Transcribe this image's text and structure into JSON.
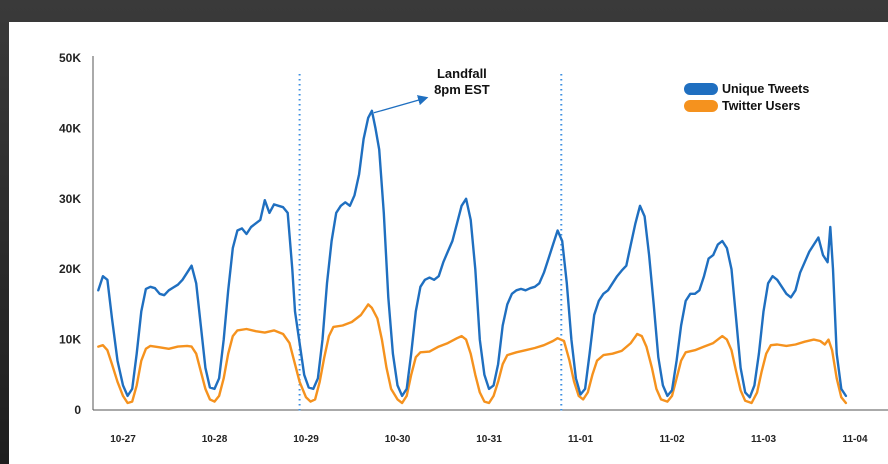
{
  "chart_data": {
    "type": "line",
    "title": "",
    "xlabel": "",
    "ylabel": "",
    "ylim": [
      0,
      50000
    ],
    "ytick_labels": [
      "0",
      "10K",
      "20K",
      "30K",
      "40K",
      "50K"
    ],
    "yticks": [
      0,
      10000,
      20000,
      30000,
      40000,
      50000
    ],
    "xlim": [
      0,
      8.33
    ],
    "xticks": [
      0,
      1,
      2,
      3,
      4,
      5,
      6,
      7,
      8
    ],
    "xtick_labels": [
      "10-27",
      "10-28",
      "10-29",
      "10-30",
      "10-31",
      "11-01",
      "11-02",
      "11-03",
      "11-04"
    ],
    "grid": false,
    "legend_position": "top-right",
    "annotation": {
      "text_line1": "Landfall",
      "text_line2": "8pm EST",
      "x": 2.72,
      "y": 42500
    },
    "vlines": [
      1.93,
      4.79
    ],
    "series": [
      {
        "name": "Unique Tweets",
        "color": "#1f6fc0",
        "points": [
          [
            -0.27,
            17000
          ],
          [
            -0.22,
            19000
          ],
          [
            -0.17,
            18500
          ],
          [
            -0.12,
            13000
          ],
          [
            -0.06,
            7000
          ],
          [
            0.0,
            3500
          ],
          [
            0.05,
            2000
          ],
          [
            0.1,
            3000
          ],
          [
            0.15,
            8000
          ],
          [
            0.2,
            14000
          ],
          [
            0.25,
            17200
          ],
          [
            0.3,
            17500
          ],
          [
            0.35,
            17300
          ],
          [
            0.4,
            16500
          ],
          [
            0.45,
            16300
          ],
          [
            0.5,
            17000
          ],
          [
            0.55,
            17400
          ],
          [
            0.6,
            17800
          ],
          [
            0.65,
            18500
          ],
          [
            0.7,
            19500
          ],
          [
            0.75,
            20500
          ],
          [
            0.8,
            18000
          ],
          [
            0.85,
            12000
          ],
          [
            0.9,
            6000
          ],
          [
            0.95,
            3200
          ],
          [
            1.0,
            3000
          ],
          [
            1.05,
            4500
          ],
          [
            1.1,
            10000
          ],
          [
            1.15,
            17000
          ],
          [
            1.2,
            23000
          ],
          [
            1.25,
            25500
          ],
          [
            1.3,
            25800
          ],
          [
            1.35,
            25000
          ],
          [
            1.4,
            26000
          ],
          [
            1.45,
            26500
          ],
          [
            1.5,
            27000
          ],
          [
            1.55,
            29800
          ],
          [
            1.6,
            28000
          ],
          [
            1.65,
            29200
          ],
          [
            1.7,
            29000
          ],
          [
            1.75,
            28800
          ],
          [
            1.8,
            28000
          ],
          [
            1.85,
            20000
          ],
          [
            1.88,
            14000
          ],
          [
            1.93,
            9500
          ],
          [
            1.98,
            5000
          ],
          [
            2.03,
            3200
          ],
          [
            2.08,
            3000
          ],
          [
            2.13,
            4500
          ],
          [
            2.18,
            10000
          ],
          [
            2.23,
            18000
          ],
          [
            2.28,
            24000
          ],
          [
            2.33,
            28000
          ],
          [
            2.38,
            29000
          ],
          [
            2.43,
            29500
          ],
          [
            2.48,
            29000
          ],
          [
            2.53,
            30500
          ],
          [
            2.58,
            33500
          ],
          [
            2.63,
            38500
          ],
          [
            2.68,
            41500
          ],
          [
            2.72,
            42500
          ],
          [
            2.76,
            40000
          ],
          [
            2.8,
            37000
          ],
          [
            2.85,
            28000
          ],
          [
            2.9,
            16000
          ],
          [
            2.95,
            8000
          ],
          [
            3.0,
            3500
          ],
          [
            3.05,
            2000
          ],
          [
            3.1,
            3000
          ],
          [
            3.15,
            8000
          ],
          [
            3.2,
            14000
          ],
          [
            3.25,
            17500
          ],
          [
            3.3,
            18500
          ],
          [
            3.35,
            18800
          ],
          [
            3.4,
            18500
          ],
          [
            3.45,
            19000
          ],
          [
            3.5,
            21000
          ],
          [
            3.55,
            22500
          ],
          [
            3.6,
            24000
          ],
          [
            3.65,
            26500
          ],
          [
            3.7,
            29000
          ],
          [
            3.75,
            30000
          ],
          [
            3.8,
            27000
          ],
          [
            3.85,
            20000
          ],
          [
            3.9,
            10000
          ],
          [
            3.95,
            5000
          ],
          [
            4.0,
            3000
          ],
          [
            4.05,
            3500
          ],
          [
            4.1,
            6500
          ],
          [
            4.15,
            12000
          ],
          [
            4.2,
            15000
          ],
          [
            4.25,
            16500
          ],
          [
            4.3,
            17000
          ],
          [
            4.35,
            17200
          ],
          [
            4.4,
            17000
          ],
          [
            4.45,
            17300
          ],
          [
            4.5,
            17500
          ],
          [
            4.55,
            18000
          ],
          [
            4.6,
            19500
          ],
          [
            4.65,
            21500
          ],
          [
            4.7,
            23500
          ],
          [
            4.75,
            25500
          ],
          [
            4.8,
            24000
          ],
          [
            4.85,
            18000
          ],
          [
            4.9,
            10000
          ],
          [
            4.95,
            4500
          ],
          [
            5.0,
            2200
          ],
          [
            5.05,
            3000
          ],
          [
            5.1,
            8000
          ],
          [
            5.15,
            13500
          ],
          [
            5.2,
            15500
          ],
          [
            5.25,
            16500
          ],
          [
            5.3,
            17000
          ],
          [
            5.35,
            18000
          ],
          [
            5.4,
            19000
          ],
          [
            5.45,
            19800
          ],
          [
            5.5,
            20500
          ],
          [
            5.55,
            23500
          ],
          [
            5.6,
            26500
          ],
          [
            5.65,
            29000
          ],
          [
            5.7,
            27500
          ],
          [
            5.75,
            22000
          ],
          [
            5.8,
            15000
          ],
          [
            5.85,
            7500
          ],
          [
            5.9,
            3500
          ],
          [
            5.95,
            2000
          ],
          [
            6.0,
            2800
          ],
          [
            6.05,
            7000
          ],
          [
            6.1,
            12000
          ],
          [
            6.15,
            15500
          ],
          [
            6.2,
            16500
          ],
          [
            6.25,
            16500
          ],
          [
            6.3,
            17000
          ],
          [
            6.35,
            19000
          ],
          [
            6.4,
            21500
          ],
          [
            6.45,
            22000
          ],
          [
            6.5,
            23500
          ],
          [
            6.55,
            24000
          ],
          [
            6.6,
            23000
          ],
          [
            6.65,
            20000
          ],
          [
            6.7,
            13000
          ],
          [
            6.75,
            6000
          ],
          [
            6.8,
            2500
          ],
          [
            6.85,
            1800
          ],
          [
            6.9,
            3500
          ],
          [
            6.95,
            8000
          ],
          [
            7.0,
            14000
          ],
          [
            7.05,
            18000
          ],
          [
            7.1,
            19000
          ],
          [
            7.15,
            18500
          ],
          [
            7.2,
            17500
          ],
          [
            7.25,
            16500
          ],
          [
            7.3,
            16000
          ],
          [
            7.35,
            17000
          ],
          [
            7.4,
            19500
          ],
          [
            7.45,
            21000
          ],
          [
            7.5,
            22500
          ],
          [
            7.55,
            23500
          ],
          [
            7.6,
            24500
          ],
          [
            7.65,
            22000
          ],
          [
            7.7,
            21000
          ],
          [
            7.73,
            26000
          ],
          [
            7.76,
            20000
          ],
          [
            7.8,
            8000
          ],
          [
            7.85,
            3000
          ],
          [
            7.9,
            2000
          ]
        ]
      },
      {
        "name": "Twitter Users",
        "color": "#f5921e",
        "points": [
          [
            -0.27,
            9000
          ],
          [
            -0.22,
            9200
          ],
          [
            -0.17,
            8500
          ],
          [
            -0.12,
            6500
          ],
          [
            -0.06,
            4000
          ],
          [
            0.0,
            2000
          ],
          [
            0.05,
            1000
          ],
          [
            0.1,
            1200
          ],
          [
            0.15,
            3500
          ],
          [
            0.2,
            7000
          ],
          [
            0.25,
            8700
          ],
          [
            0.3,
            9100
          ],
          [
            0.4,
            8900
          ],
          [
            0.5,
            8700
          ],
          [
            0.6,
            9000
          ],
          [
            0.7,
            9100
          ],
          [
            0.75,
            9000
          ],
          [
            0.8,
            8000
          ],
          [
            0.85,
            5500
          ],
          [
            0.9,
            3000
          ],
          [
            0.95,
            1500
          ],
          [
            1.0,
            1200
          ],
          [
            1.05,
            2000
          ],
          [
            1.1,
            4500
          ],
          [
            1.15,
            8000
          ],
          [
            1.2,
            10500
          ],
          [
            1.25,
            11300
          ],
          [
            1.35,
            11500
          ],
          [
            1.45,
            11200
          ],
          [
            1.55,
            11000
          ],
          [
            1.65,
            11300
          ],
          [
            1.75,
            10800
          ],
          [
            1.82,
            9500
          ],
          [
            1.88,
            6500
          ],
          [
            1.93,
            4000
          ],
          [
            2.0,
            1800
          ],
          [
            2.05,
            1200
          ],
          [
            2.1,
            1500
          ],
          [
            2.15,
            4000
          ],
          [
            2.2,
            7500
          ],
          [
            2.25,
            10500
          ],
          [
            2.3,
            11800
          ],
          [
            2.4,
            12000
          ],
          [
            2.5,
            12500
          ],
          [
            2.6,
            13500
          ],
          [
            2.68,
            15000
          ],
          [
            2.72,
            14500
          ],
          [
            2.78,
            13000
          ],
          [
            2.83,
            10000
          ],
          [
            2.88,
            6000
          ],
          [
            2.93,
            3000
          ],
          [
            3.0,
            1500
          ],
          [
            3.05,
            1000
          ],
          [
            3.1,
            2000
          ],
          [
            3.15,
            5000
          ],
          [
            3.2,
            7500
          ],
          [
            3.25,
            8200
          ],
          [
            3.35,
            8300
          ],
          [
            3.45,
            9000
          ],
          [
            3.55,
            9500
          ],
          [
            3.65,
            10200
          ],
          [
            3.7,
            10500
          ],
          [
            3.75,
            10000
          ],
          [
            3.8,
            8000
          ],
          [
            3.85,
            5000
          ],
          [
            3.9,
            2500
          ],
          [
            3.95,
            1200
          ],
          [
            4.0,
            1000
          ],
          [
            4.05,
            2000
          ],
          [
            4.1,
            4000
          ],
          [
            4.15,
            6500
          ],
          [
            4.2,
            7800
          ],
          [
            4.3,
            8200
          ],
          [
            4.4,
            8500
          ],
          [
            4.5,
            8800
          ],
          [
            4.6,
            9200
          ],
          [
            4.7,
            9800
          ],
          [
            4.75,
            10200
          ],
          [
            4.82,
            9800
          ],
          [
            4.88,
            7000
          ],
          [
            4.93,
            4000
          ],
          [
            4.98,
            2000
          ],
          [
            5.03,
            1500
          ],
          [
            5.08,
            2500
          ],
          [
            5.13,
            5000
          ],
          [
            5.18,
            7000
          ],
          [
            5.25,
            7800
          ],
          [
            5.35,
            8000
          ],
          [
            5.45,
            8400
          ],
          [
            5.55,
            9500
          ],
          [
            5.62,
            10800
          ],
          [
            5.67,
            10500
          ],
          [
            5.72,
            9000
          ],
          [
            5.78,
            6000
          ],
          [
            5.83,
            3000
          ],
          [
            5.88,
            1500
          ],
          [
            5.95,
            1200
          ],
          [
            6.0,
            2000
          ],
          [
            6.05,
            4500
          ],
          [
            6.1,
            7000
          ],
          [
            6.15,
            8200
          ],
          [
            6.25,
            8500
          ],
          [
            6.35,
            9000
          ],
          [
            6.45,
            9500
          ],
          [
            6.55,
            10500
          ],
          [
            6.6,
            10000
          ],
          [
            6.65,
            8500
          ],
          [
            6.7,
            5500
          ],
          [
            6.75,
            2800
          ],
          [
            6.8,
            1300
          ],
          [
            6.87,
            1000
          ],
          [
            6.93,
            2500
          ],
          [
            6.98,
            5500
          ],
          [
            7.03,
            8000
          ],
          [
            7.08,
            9200
          ],
          [
            7.15,
            9300
          ],
          [
            7.25,
            9100
          ],
          [
            7.35,
            9300
          ],
          [
            7.45,
            9700
          ],
          [
            7.55,
            10000
          ],
          [
            7.62,
            9800
          ],
          [
            7.67,
            9300
          ],
          [
            7.71,
            10000
          ],
          [
            7.75,
            8500
          ],
          [
            7.8,
            4500
          ],
          [
            7.85,
            1800
          ],
          [
            7.9,
            1000
          ]
        ]
      }
    ]
  }
}
